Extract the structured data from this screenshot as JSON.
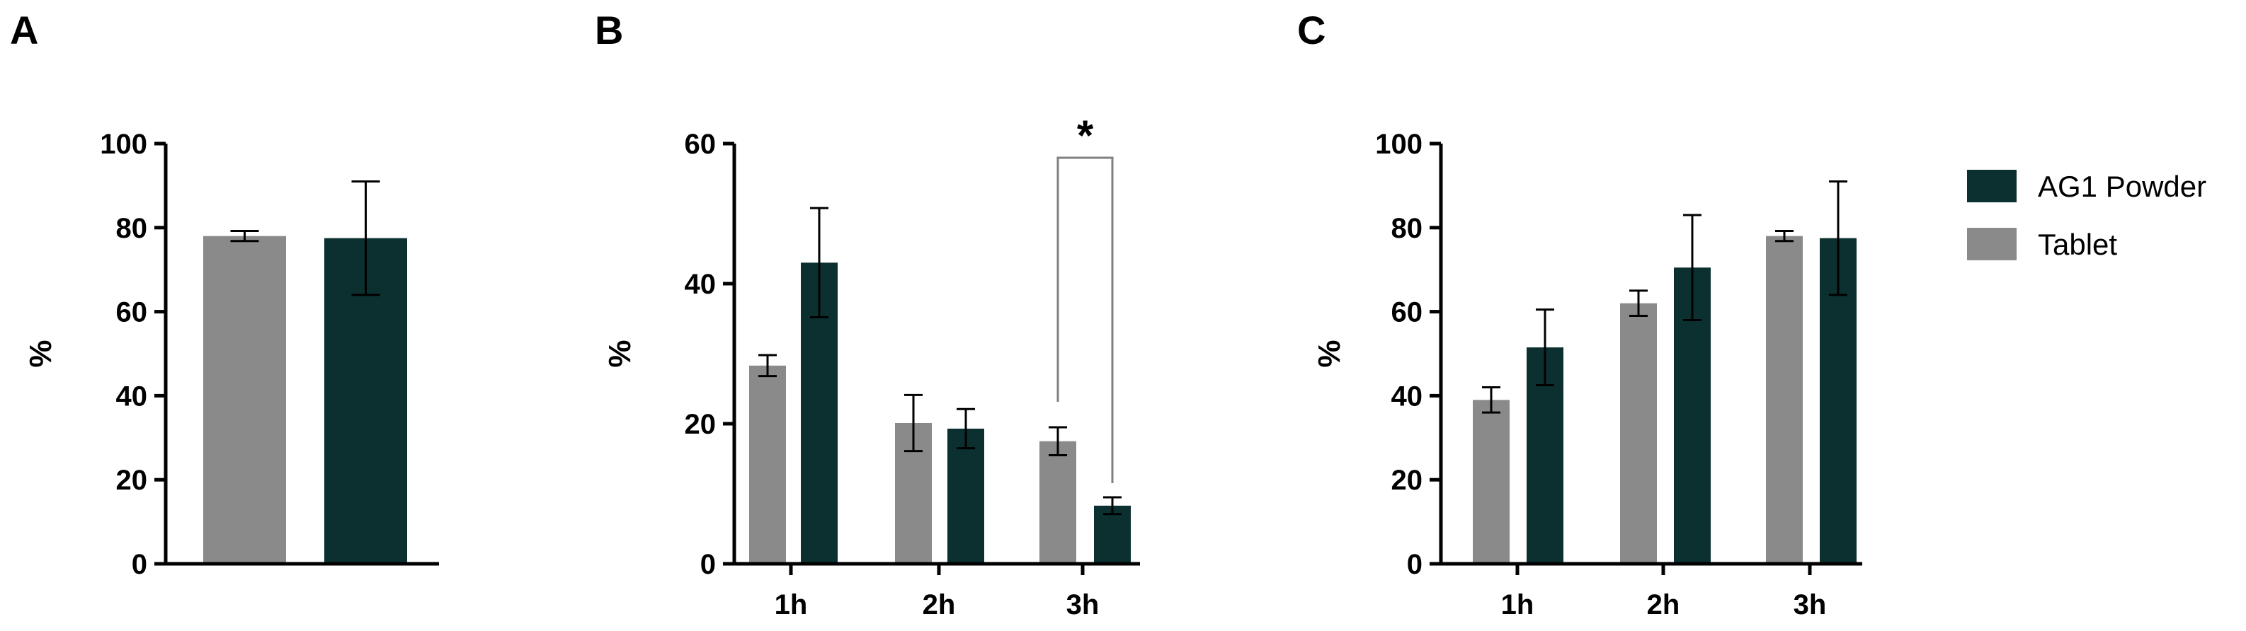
{
  "colors": {
    "tablet": "#8a8a8a",
    "ag1": "#0b302f",
    "axis": "#000000",
    "bracket": "#808080"
  },
  "legend": {
    "entries": [
      {
        "label": "AG1 Powder",
        "color": "#0b302f"
      },
      {
        "label": "Tablet",
        "color": "#8a8a8a"
      }
    ]
  },
  "chart_data": [
    {
      "panel": "A",
      "type": "bar",
      "ylabel": "%",
      "ylim": [
        0,
        100
      ],
      "yticks": [
        0,
        20,
        40,
        60,
        80,
        100
      ],
      "categories": [
        ""
      ],
      "series": [
        {
          "name": "Tablet",
          "values": [
            78
          ],
          "errors": [
            1.2
          ]
        },
        {
          "name": "AG1 Powder",
          "values": [
            77.5
          ],
          "errors": [
            13.5
          ]
        }
      ]
    },
    {
      "panel": "B",
      "type": "bar",
      "ylabel": "%",
      "ylim": [
        0,
        60
      ],
      "yticks": [
        0,
        20,
        40,
        60
      ],
      "categories": [
        "1h",
        "2h",
        "3h"
      ],
      "series": [
        {
          "name": "Tablet",
          "values": [
            28.3,
            20.1,
            17.5
          ],
          "errors": [
            1.5,
            4.0,
            2.0
          ]
        },
        {
          "name": "AG1 Powder",
          "values": [
            43.0,
            19.3,
            8.3
          ],
          "errors": [
            7.8,
            2.8,
            1.2
          ]
        }
      ],
      "annotation": {
        "text": "*",
        "category": "3h"
      }
    },
    {
      "panel": "C",
      "type": "bar",
      "ylabel": "%",
      "ylim": [
        0,
        100
      ],
      "yticks": [
        0,
        20,
        40,
        60,
        80,
        100
      ],
      "categories": [
        "1h",
        "2h",
        "3h"
      ],
      "series": [
        {
          "name": "Tablet",
          "values": [
            39,
            62,
            78
          ],
          "errors": [
            3,
            3,
            1.2
          ]
        },
        {
          "name": "AG1 Powder",
          "values": [
            51.5,
            70.5,
            77.5
          ],
          "errors": [
            9,
            12.5,
            13.5
          ]
        }
      ]
    }
  ]
}
